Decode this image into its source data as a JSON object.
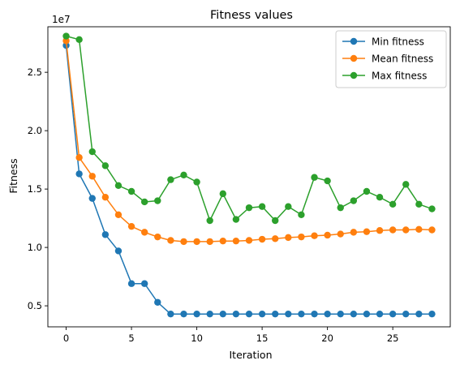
{
  "chart_data": {
    "type": "line",
    "title": "Fitness values",
    "xlabel": "Iteration",
    "ylabel": "Fitness",
    "offset_label": "1e7",
    "xlim": [
      -1.4,
      29.4
    ],
    "ylim": [
      3.2,
      28.9
    ],
    "y_unit_scale": 10000000.0,
    "grid": false,
    "legend_position": "top-right",
    "x_ticks": [
      0,
      5,
      10,
      15,
      20,
      25
    ],
    "x_tick_labels": [
      "0",
      "5",
      "10",
      "15",
      "20",
      "25"
    ],
    "y_ticks": [
      5.0,
      10.0,
      15.0,
      20.0,
      25.0
    ],
    "y_tick_labels": [
      "0.5",
      "1.0",
      "1.5",
      "2.0",
      "2.5"
    ],
    "x": [
      0,
      1,
      2,
      3,
      4,
      5,
      6,
      7,
      8,
      9,
      10,
      11,
      12,
      13,
      14,
      15,
      16,
      17,
      18,
      19,
      20,
      21,
      22,
      23,
      24,
      25,
      26,
      27,
      28
    ],
    "series": [
      {
        "name": "Min fitness",
        "color": "#1f77b4",
        "values": [
          27.3,
          16.3,
          14.2,
          11.1,
          9.7,
          6.9,
          6.9,
          5.3,
          4.3,
          4.3,
          4.3,
          4.3,
          4.3,
          4.3,
          4.3,
          4.3,
          4.3,
          4.3,
          4.3,
          4.3,
          4.3,
          4.3,
          4.3,
          4.3,
          4.3,
          4.3,
          4.3,
          4.3,
          4.3
        ]
      },
      {
        "name": "Mean fitness",
        "color": "#ff7f0e",
        "values": [
          27.7,
          17.7,
          16.1,
          14.3,
          12.8,
          11.8,
          11.3,
          10.9,
          10.6,
          10.5,
          10.5,
          10.5,
          10.55,
          10.55,
          10.6,
          10.7,
          10.75,
          10.85,
          10.9,
          11.0,
          11.05,
          11.15,
          11.3,
          11.35,
          11.45,
          11.5,
          11.5,
          11.55,
          11.5
        ]
      },
      {
        "name": "Max fitness",
        "color": "#2ca02c",
        "values": [
          28.1,
          27.8,
          18.2,
          17.0,
          15.3,
          14.8,
          13.9,
          14.0,
          15.8,
          16.2,
          15.6,
          12.3,
          14.6,
          12.4,
          13.4,
          13.5,
          12.3,
          13.5,
          12.8,
          16.0,
          15.7,
          13.4,
          14.0,
          14.8,
          14.3,
          13.7,
          15.4,
          13.7,
          13.3
        ]
      }
    ]
  }
}
